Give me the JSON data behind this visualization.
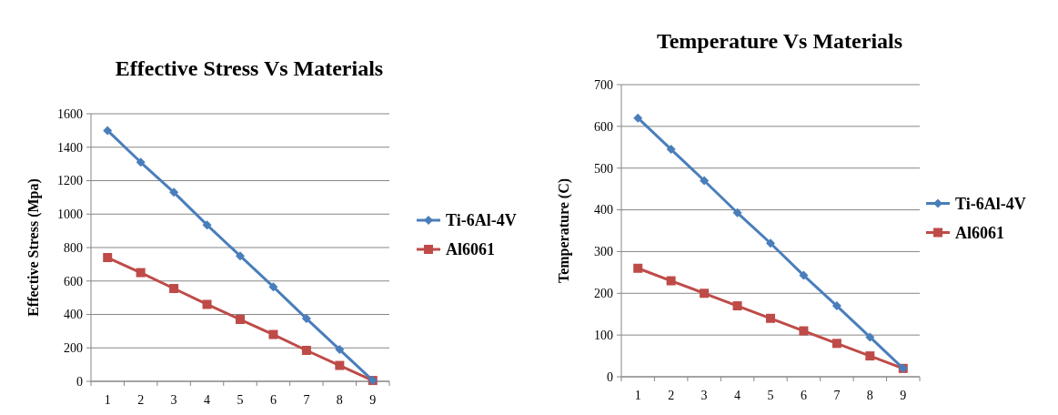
{
  "chart_data": [
    {
      "type": "line",
      "title": "Effective Stress Vs Materials",
      "ylabel": "Effective Stress (Mpa)",
      "categories": [
        "1",
        "2",
        "3",
        "4",
        "5",
        "6",
        "7",
        "8",
        "9"
      ],
      "ylim": [
        0,
        1600
      ],
      "yticks": [
        0,
        200,
        400,
        600,
        800,
        1000,
        1200,
        1400,
        1600
      ],
      "grid": "y",
      "legend": "right",
      "series": [
        {
          "name": "Ti-6Al-4V",
          "color": "#4a7ebb",
          "marker": "diamond",
          "values": [
            1500,
            1310,
            1130,
            935,
            750,
            565,
            375,
            190,
            5
          ]
        },
        {
          "name": "Al6061",
          "color": "#be4b48",
          "marker": "square",
          "values": [
            740,
            650,
            555,
            460,
            370,
            280,
            185,
            95,
            5
          ]
        }
      ]
    },
    {
      "type": "line",
      "title": "Temperature Vs Materials",
      "ylabel": "Temperature (C)",
      "categories": [
        "1",
        "2",
        "3",
        "4",
        "5",
        "6",
        "7",
        "8",
        "9"
      ],
      "ylim": [
        0,
        700
      ],
      "yticks": [
        0,
        100,
        200,
        300,
        400,
        500,
        600,
        700
      ],
      "grid": "y",
      "legend": "right",
      "series": [
        {
          "name": "Ti-6Al-4V",
          "color": "#4a7ebb",
          "marker": "diamond",
          "values": [
            620,
            545,
            470,
            393,
            320,
            243,
            170,
            95,
            20
          ]
        },
        {
          "name": "Al6061",
          "color": "#be4b48",
          "marker": "square",
          "values": [
            260,
            230,
            200,
            170,
            140,
            110,
            80,
            50,
            20
          ]
        }
      ]
    }
  ]
}
